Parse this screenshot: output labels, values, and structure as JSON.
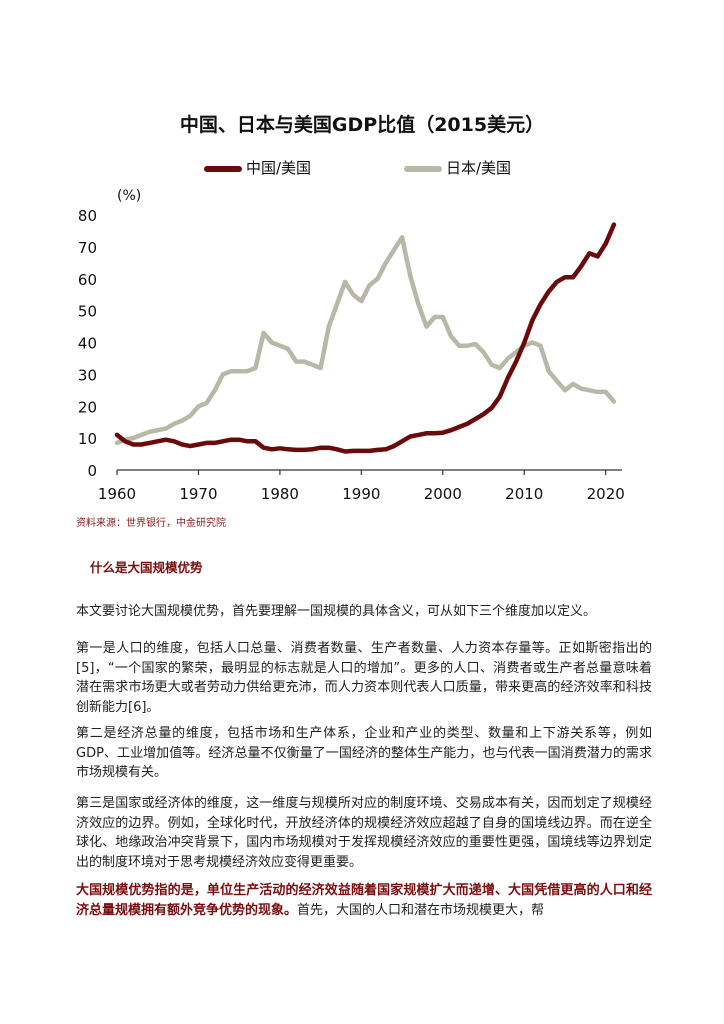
{
  "chart_data": {
    "type": "line",
    "title": "中国、日本与美国GDP比值（2015美元）",
    "ylabel": "(%)",
    "xlabel": "",
    "xlim": [
      1960,
      2022
    ],
    "ylim": [
      0,
      80
    ],
    "xticks": [
      1960,
      1970,
      1980,
      1990,
      2000,
      2010,
      2020
    ],
    "yticks": [
      0,
      10,
      20,
      30,
      40,
      50,
      60,
      70,
      80
    ],
    "legend_position": "top",
    "series": [
      {
        "name": "中国/美国",
        "color": "#6b0a0a",
        "x": [
          1960,
          1961,
          1962,
          1963,
          1964,
          1965,
          1966,
          1967,
          1968,
          1969,
          1970,
          1971,
          1972,
          1973,
          1974,
          1975,
          1976,
          1977,
          1978,
          1979,
          1980,
          1981,
          1982,
          1983,
          1984,
          1985,
          1986,
          1987,
          1988,
          1989,
          1990,
          1991,
          1992,
          1993,
          1994,
          1995,
          1996,
          1997,
          1998,
          1999,
          2000,
          2001,
          2002,
          2003,
          2004,
          2005,
          2006,
          2007,
          2008,
          2009,
          2010,
          2011,
          2012,
          2013,
          2014,
          2015,
          2016,
          2017,
          2018,
          2019,
          2020,
          2021
        ],
        "values": [
          11,
          9,
          8,
          8,
          8.5,
          9,
          9.5,
          9,
          8,
          7.5,
          8,
          8.5,
          8.5,
          9,
          9.5,
          9.5,
          9,
          9,
          7,
          6.5,
          6.8,
          6.5,
          6.3,
          6.3,
          6.5,
          7,
          7,
          6.5,
          5.8,
          6,
          6,
          6,
          6.3,
          6.5,
          7.5,
          9,
          10.5,
          11,
          11.5,
          11.5,
          11.7,
          12.5,
          13.5,
          14.5,
          16,
          17.5,
          19.5,
          23,
          29,
          34,
          40,
          47,
          52,
          56,
          59,
          60.5,
          60.5,
          64,
          68,
          67,
          71,
          77
        ]
      },
      {
        "name": "日本/美国",
        "color": "#b8b8a8",
        "x": [
          1960,
          1961,
          1962,
          1963,
          1964,
          1965,
          1966,
          1967,
          1968,
          1969,
          1970,
          1971,
          1972,
          1973,
          1974,
          1975,
          1976,
          1977,
          1978,
          1979,
          1980,
          1981,
          1982,
          1983,
          1984,
          1985,
          1986,
          1987,
          1988,
          1989,
          1990,
          1991,
          1992,
          1993,
          1994,
          1995,
          1996,
          1997,
          1998,
          1999,
          2000,
          2001,
          2002,
          2003,
          2004,
          2005,
          2006,
          2007,
          2008,
          2009,
          2010,
          2011,
          2012,
          2013,
          2014,
          2015,
          2016,
          2017,
          2018,
          2019,
          2020,
          2021
        ],
        "values": [
          8.5,
          9.5,
          10,
          11,
          12,
          12.5,
          13,
          14.5,
          15.5,
          17,
          20,
          21,
          25,
          30,
          31,
          31,
          31,
          32,
          43,
          40,
          39,
          38,
          34,
          34,
          33,
          32,
          45,
          52,
          59,
          55,
          53,
          58,
          60,
          65,
          69,
          73,
          61,
          52,
          45,
          48,
          48,
          42,
          39,
          39,
          39.5,
          37,
          33,
          32,
          35,
          37,
          39,
          40,
          39,
          31,
          28,
          25,
          27,
          25.5,
          25,
          24.5,
          24.5,
          21.5
        ]
      }
    ]
  },
  "source_note": "资料来源：世界银行，中金研究院",
  "section_heading": "什么是大国规模优势",
  "paragraphs": {
    "p1": "本文要讨论大国规模优势，首先要理解一国规模的具体含义，可从如下三个维度加以定义。",
    "p2": "第一是人口的维度，包括人口总量、消费者数量、生产者数量、人力资本存量等。正如斯密指出的[5]，“一个国家的繁荣，最明显的标志就是人口的增加”。更多的人口、消费者或生产者总量意味着潜在需求市场更大或者劳动力供给更充沛，而人力资本则代表人口质量，带来更高的经济效率和科技创新能力[6]。",
    "p3": "第二是经济总量的维度，包括市场和生产体系，企业和产业的类型、数量和上下游关系等，例如GDP、工业增加值等。经济总量不仅衡量了一国经济的整体生产能力，也与代表一国消费潜力的需求市场规模有关。",
    "p4": "第三是国家或经济体的维度，这一维度与规模所对应的制度环境、交易成本有关，因而划定了规模经济效应的边界。例如，全球化时代，开放经济体的规模经济效应超越了自身的国境线边界。而在逆全球化、地缘政治冲突背景下，国内市场规模对于发挥规模经济效应的重要性更强，国境线等边界划定出的制度环境对于思考规模经济效应变得更重要。",
    "p5_bold": "大国规模优势指的是，单位生产活动的经济效益随着国家规模扩大而递增、大国凭借更高的人口和经济总量规模拥有额外竞争优势的现象。",
    "p5_rest": "首先，大国的人口和潜在市场规模更大，帮"
  }
}
